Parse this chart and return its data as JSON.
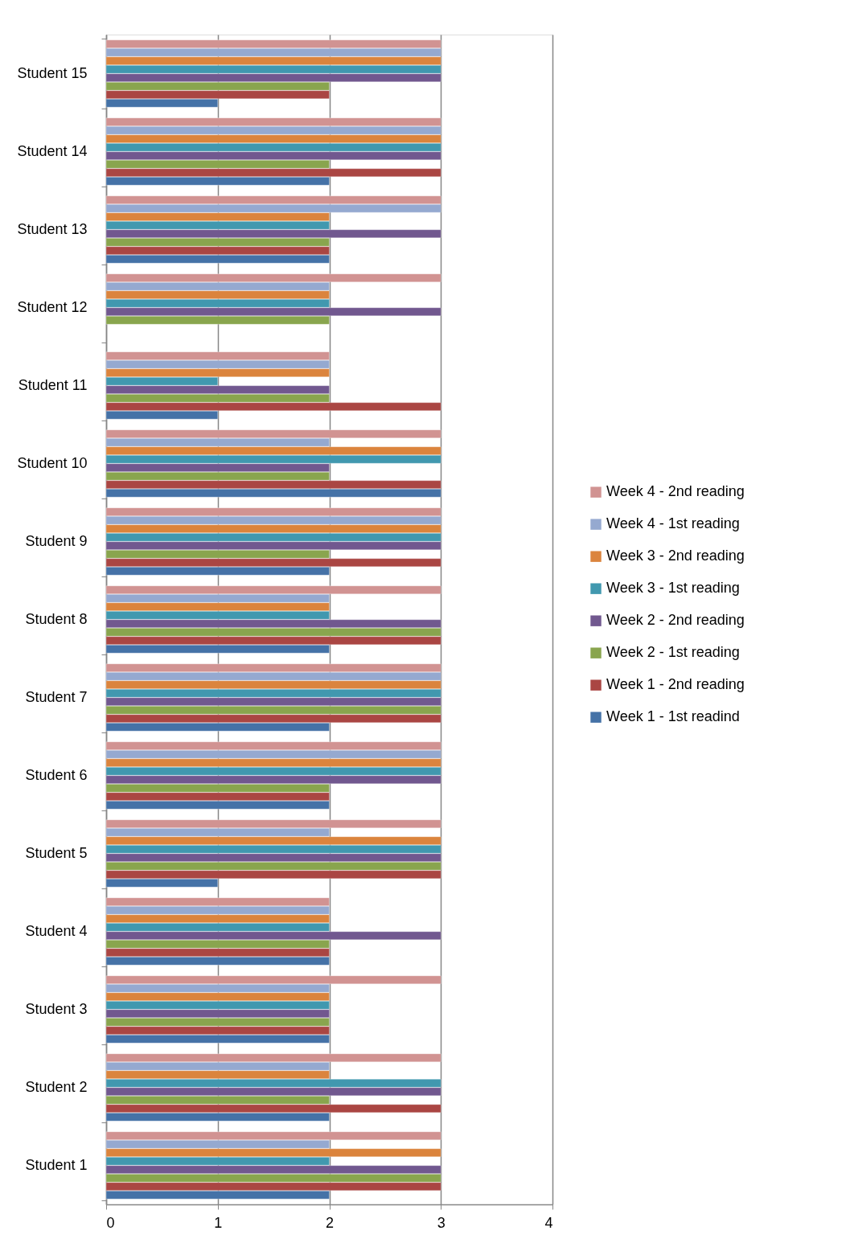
{
  "chart_data": {
    "type": "bar",
    "orientation": "horizontal",
    "categories": [
      "Student 15",
      "Student 14",
      "Student 13",
      "Student 12",
      "Student 11",
      "Student 10",
      "Student 9",
      "Student 8",
      "Student 7",
      "Student 6",
      "Student 5",
      "Student 4",
      "Student 3",
      "Student 2",
      "Student 1"
    ],
    "series": [
      {
        "name": "Week 4 - 2nd reading",
        "color": "#d19392",
        "values": [
          3,
          3,
          3,
          3,
          2,
          3,
          3,
          3,
          3,
          3,
          3,
          2,
          3,
          3,
          3
        ]
      },
      {
        "name": "Week 4 - 1st reading",
        "color": "#95a9d0",
        "values": [
          3,
          3,
          3,
          2,
          2,
          2,
          3,
          2,
          3,
          3,
          2,
          2,
          2,
          2,
          2
        ]
      },
      {
        "name": "Week 3 - 2nd reading",
        "color": "#db843d",
        "values": [
          3,
          3,
          2,
          2,
          2,
          3,
          3,
          2,
          3,
          3,
          3,
          2,
          2,
          2,
          3
        ]
      },
      {
        "name": "Week 3 - 1st reading",
        "color": "#4198af",
        "values": [
          3,
          3,
          2,
          2,
          1,
          3,
          3,
          2,
          3,
          3,
          3,
          2,
          2,
          3,
          2
        ]
      },
      {
        "name": "Week 2 - 2nd reading",
        "color": "#71588f",
        "values": [
          3,
          3,
          3,
          3,
          2,
          2,
          3,
          3,
          3,
          3,
          3,
          3,
          2,
          3,
          3
        ]
      },
      {
        "name": "Week 2 - 1st reading",
        "color": "#89a54e",
        "values": [
          2,
          2,
          2,
          2,
          2,
          2,
          2,
          3,
          3,
          2,
          3,
          2,
          2,
          2,
          3
        ]
      },
      {
        "name": "Week 1 - 2nd reading",
        "color": "#aa4643",
        "values": [
          2,
          3,
          2,
          null,
          3,
          3,
          3,
          3,
          3,
          2,
          3,
          2,
          2,
          3,
          3
        ]
      },
      {
        "name": "Week 1 - 1st readind",
        "color": "#4572a7",
        "values": [
          1,
          2,
          2,
          null,
          1,
          3,
          2,
          2,
          2,
          2,
          1,
          2,
          2,
          2,
          2
        ]
      }
    ],
    "xlim": [
      0,
      4
    ],
    "xticks": [
      0,
      1,
      2,
      3,
      4
    ],
    "grid": "x",
    "legend": "right"
  }
}
